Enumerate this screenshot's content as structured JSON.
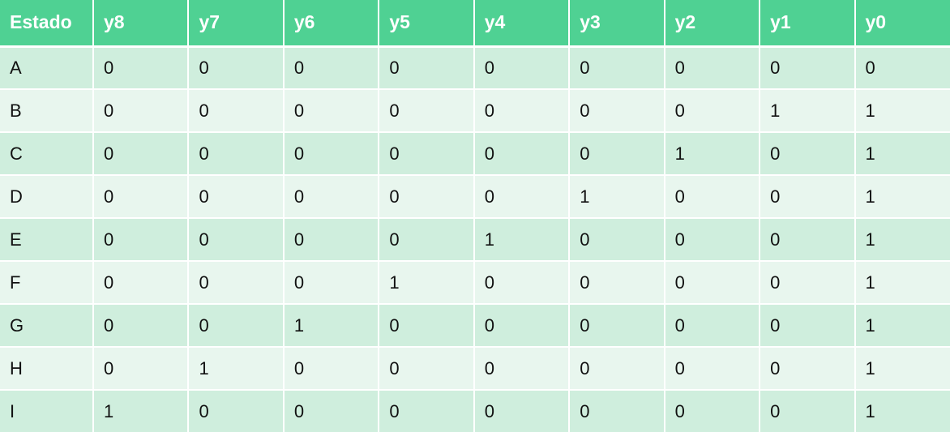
{
  "table": {
    "headers": [
      "Estado",
      "y8",
      "y7",
      "y6",
      "y5",
      "y4",
      "y3",
      "y2",
      "y1",
      "y0"
    ],
    "rows": [
      [
        "A",
        "0",
        "0",
        "0",
        "0",
        "0",
        "0",
        "0",
        "0",
        "0"
      ],
      [
        "B",
        "0",
        "0",
        "0",
        "0",
        "0",
        "0",
        "0",
        "1",
        "1"
      ],
      [
        "C",
        "0",
        "0",
        "0",
        "0",
        "0",
        "0",
        "1",
        "0",
        "1"
      ],
      [
        "D",
        "0",
        "0",
        "0",
        "0",
        "0",
        "1",
        "0",
        "0",
        "1"
      ],
      [
        "E",
        "0",
        "0",
        "0",
        "0",
        "1",
        "0",
        "0",
        "0",
        "1"
      ],
      [
        "F",
        "0",
        "0",
        "0",
        "1",
        "0",
        "0",
        "0",
        "0",
        "1"
      ],
      [
        "G",
        "0",
        "0",
        "1",
        "0",
        "0",
        "0",
        "0",
        "0",
        "1"
      ],
      [
        "H",
        "0",
        "1",
        "0",
        "0",
        "0",
        "0",
        "0",
        "0",
        "1"
      ],
      [
        "I",
        "1",
        "0",
        "0",
        "0",
        "0",
        "0",
        "0",
        "0",
        "1"
      ]
    ]
  },
  "colors": {
    "header_bg": "#4fd193",
    "row_dark": "#cfeedd",
    "row_light": "#e8f6ee"
  }
}
